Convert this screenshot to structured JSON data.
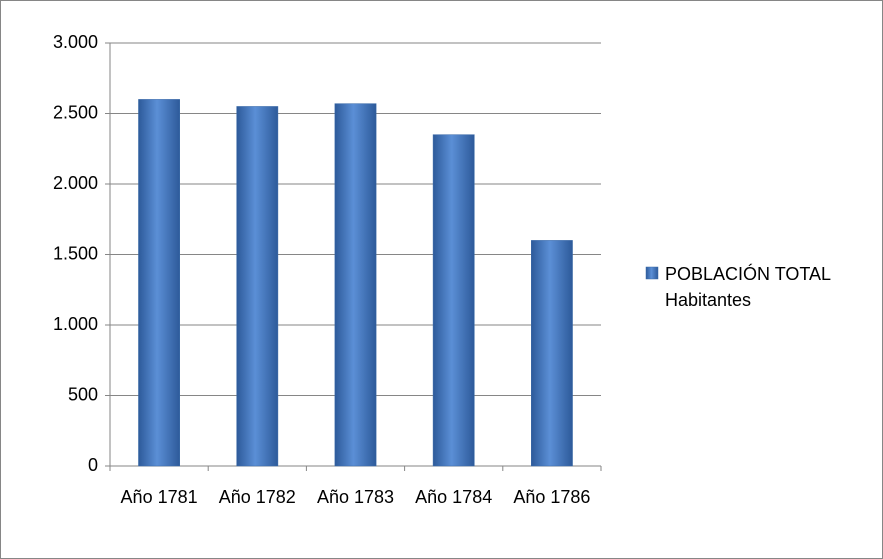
{
  "chart_data": {
    "type": "bar",
    "categories": [
      "Año 1781",
      "Año 1782",
      "Año 1783",
      "Año 1784",
      "Año 1786"
    ],
    "series": [
      {
        "name": "POBLACIÓN TOTAL Habitantes",
        "color": "#4a7ebb",
        "values": [
          2600,
          2550,
          2570,
          2350,
          1600
        ]
      }
    ],
    "ylim": [
      0,
      3000
    ],
    "yticks": [
      0,
      500,
      {
        "value": 1000,
        "label": "1.000"
      },
      {
        "value": 1500,
        "label": "1.500"
      },
      {
        "value": 2000,
        "label": "2.000"
      },
      {
        "value": 2500,
        "label": "2.500"
      },
      {
        "value": 3000,
        "label": "3.000"
      }
    ],
    "grid": true,
    "legend": "right"
  }
}
